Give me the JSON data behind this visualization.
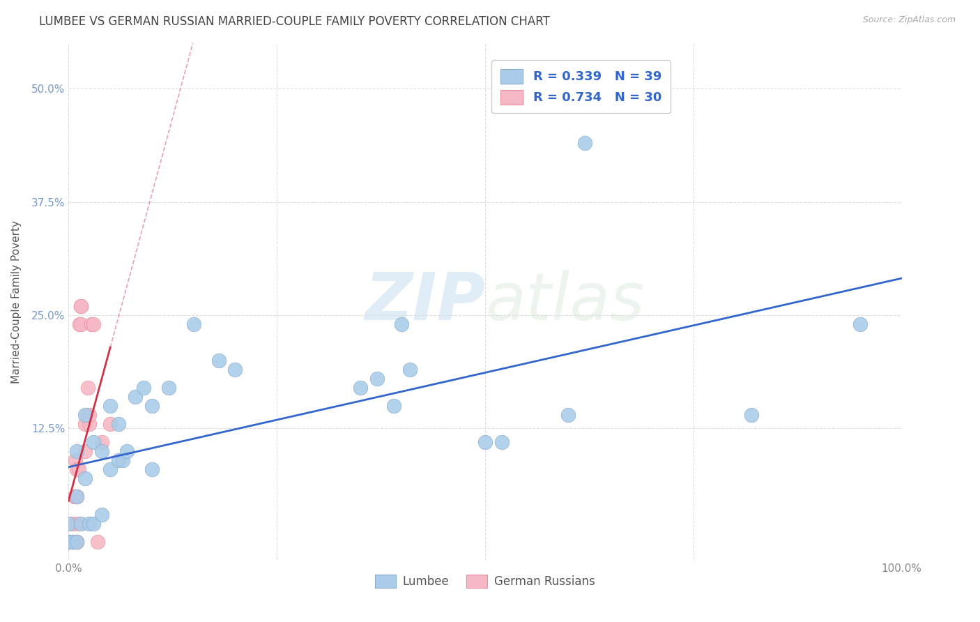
{
  "title": "LUMBEE VS GERMAN RUSSIAN MARRIED-COUPLE FAMILY POVERTY CORRELATION CHART",
  "source": "Source: ZipAtlas.com",
  "ylabel": "Married-Couple Family Poverty",
  "xlim": [
    0,
    1.0
  ],
  "ylim": [
    -0.02,
    0.55
  ],
  "xticks": [
    0.0,
    0.25,
    0.5,
    0.75,
    1.0
  ],
  "xticklabels": [
    "0.0%",
    "",
    "",
    "",
    "100.0%"
  ],
  "yticks": [
    0.0,
    0.125,
    0.25,
    0.375,
    0.5
  ],
  "yticklabels": [
    "",
    "12.5%",
    "25.0%",
    "37.5%",
    "50.0%"
  ],
  "background_color": "#ffffff",
  "grid_color": "#dddddd",
  "lumbee_color": "#aacce8",
  "lumbee_edge_color": "#88aacc",
  "german_russian_color": "#f5b8c4",
  "german_russian_edge_color": "#e890a0",
  "lumbee_line_color": "#3366cc",
  "german_russian_line_color": "#cc3344",
  "lumbee_R": 0.339,
  "lumbee_N": 39,
  "german_russian_R": 0.734,
  "german_russian_N": 30,
  "legend_label_lumbee": "Lumbee",
  "legend_label_german": "German Russians",
  "watermark_zip": "ZIP",
  "watermark_atlas": "atlas",
  "lumbee_x": [
    0.0,
    0.0,
    0.005,
    0.01,
    0.01,
    0.01,
    0.015,
    0.02,
    0.02,
    0.025,
    0.03,
    0.03,
    0.04,
    0.04,
    0.05,
    0.05,
    0.06,
    0.06,
    0.065,
    0.07,
    0.08,
    0.09,
    0.1,
    0.1,
    0.12,
    0.15,
    0.18,
    0.2,
    0.35,
    0.37,
    0.39,
    0.4,
    0.41,
    0.5,
    0.52,
    0.6,
    0.62,
    0.82,
    0.95
  ],
  "lumbee_y": [
    0.02,
    0.0,
    0.0,
    0.0,
    0.05,
    0.1,
    0.02,
    0.07,
    0.14,
    0.02,
    0.02,
    0.11,
    0.03,
    0.1,
    0.08,
    0.15,
    0.09,
    0.13,
    0.09,
    0.1,
    0.16,
    0.17,
    0.08,
    0.15,
    0.17,
    0.24,
    0.2,
    0.19,
    0.17,
    0.18,
    0.15,
    0.24,
    0.19,
    0.11,
    0.11,
    0.14,
    0.44,
    0.14,
    0.24
  ],
  "german_russian_x": [
    0.0,
    0.0,
    0.0,
    0.005,
    0.005,
    0.005,
    0.007,
    0.008,
    0.008,
    0.01,
    0.01,
    0.01,
    0.01,
    0.012,
    0.012,
    0.013,
    0.015,
    0.015,
    0.015,
    0.02,
    0.02,
    0.022,
    0.023,
    0.025,
    0.025,
    0.027,
    0.03,
    0.035,
    0.04,
    0.05
  ],
  "german_russian_y": [
    0.0,
    0.0,
    0.0,
    0.0,
    0.0,
    0.02,
    0.05,
    0.05,
    0.09,
    0.0,
    0.0,
    0.05,
    0.08,
    0.02,
    0.08,
    0.24,
    0.24,
    0.26,
    0.26,
    0.1,
    0.13,
    0.14,
    0.17,
    0.13,
    0.14,
    0.24,
    0.24,
    0.0,
    0.11,
    0.13
  ]
}
